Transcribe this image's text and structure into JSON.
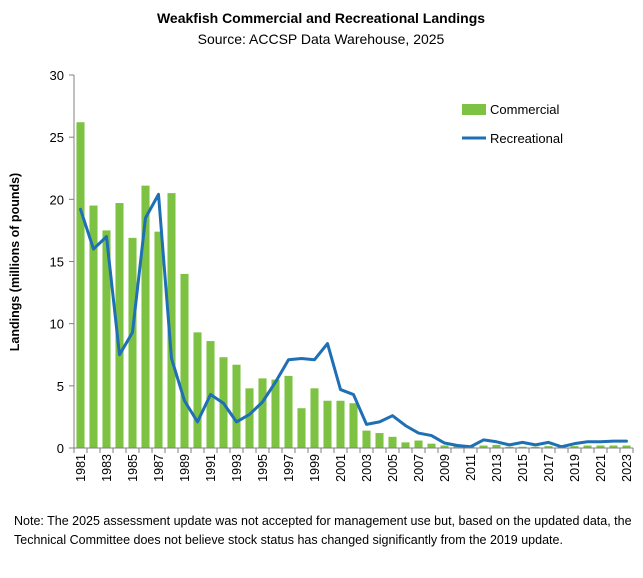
{
  "chart_data": {
    "type": "bar",
    "title": "Weakfish Commercial and Recreational Landings",
    "subtitle": "Source: ACCSP Data Warehouse, 2025",
    "xlabel": "",
    "ylabel": "Landings (millions of pounds)",
    "ylim": [
      0,
      30
    ],
    "yticks": [
      0,
      5,
      10,
      15,
      20,
      25,
      30
    ],
    "grid": false,
    "legend_position": "top-right",
    "x": [
      1981,
      1982,
      1983,
      1984,
      1985,
      1986,
      1987,
      1988,
      1989,
      1990,
      1991,
      1992,
      1993,
      1994,
      1995,
      1996,
      1997,
      1998,
      1999,
      2000,
      2001,
      2002,
      2003,
      2004,
      2005,
      2006,
      2007,
      2008,
      2009,
      2010,
      2011,
      2012,
      2013,
      2014,
      2015,
      2016,
      2017,
      2018,
      2019,
      2020,
      2021,
      2022,
      2023
    ],
    "xtick_labels": [
      "1981",
      "1983",
      "1985",
      "1987",
      "1989",
      "1991",
      "1993",
      "1995",
      "1997",
      "1999",
      "2001",
      "2003",
      "2005",
      "2007",
      "2009",
      "2011",
      "2013",
      "2015",
      "2017",
      "2019",
      "2021",
      "2023"
    ],
    "series": [
      {
        "name": "Commercial",
        "type": "bar",
        "color": "#7dc242",
        "values": [
          26.2,
          19.5,
          17.5,
          19.7,
          16.9,
          21.1,
          17.4,
          20.5,
          14.0,
          9.3,
          8.6,
          7.3,
          6.7,
          4.8,
          5.6,
          5.5,
          5.8,
          3.2,
          4.8,
          3.8,
          3.8,
          3.6,
          1.4,
          1.2,
          0.9,
          0.45,
          0.6,
          0.35,
          0.2,
          0.15,
          0.1,
          0.2,
          0.25,
          0.1,
          0.1,
          0.1,
          0.15,
          0.1,
          0.15,
          0.2,
          0.2,
          0.2,
          0.2
        ]
      },
      {
        "name": "Recreational",
        "type": "line",
        "color": "#1f6fb5",
        "values": [
          19.2,
          16.0,
          17.0,
          7.5,
          9.3,
          18.5,
          20.4,
          7.2,
          3.8,
          2.1,
          4.3,
          3.6,
          2.1,
          2.7,
          3.7,
          5.3,
          7.1,
          7.2,
          7.1,
          8.4,
          4.7,
          4.3,
          1.9,
          2.1,
          2.6,
          1.8,
          1.2,
          1.0,
          0.4,
          0.2,
          0.1,
          0.65,
          0.5,
          0.25,
          0.45,
          0.25,
          0.45,
          0.1,
          0.35,
          0.5,
          0.5,
          0.55,
          0.55
        ]
      }
    ]
  },
  "note": "Note: The 2025 assessment update was not accepted for management use but, based on the updated data, the Technical Committee does not believe stock status has changed significantly from the 2019 update."
}
